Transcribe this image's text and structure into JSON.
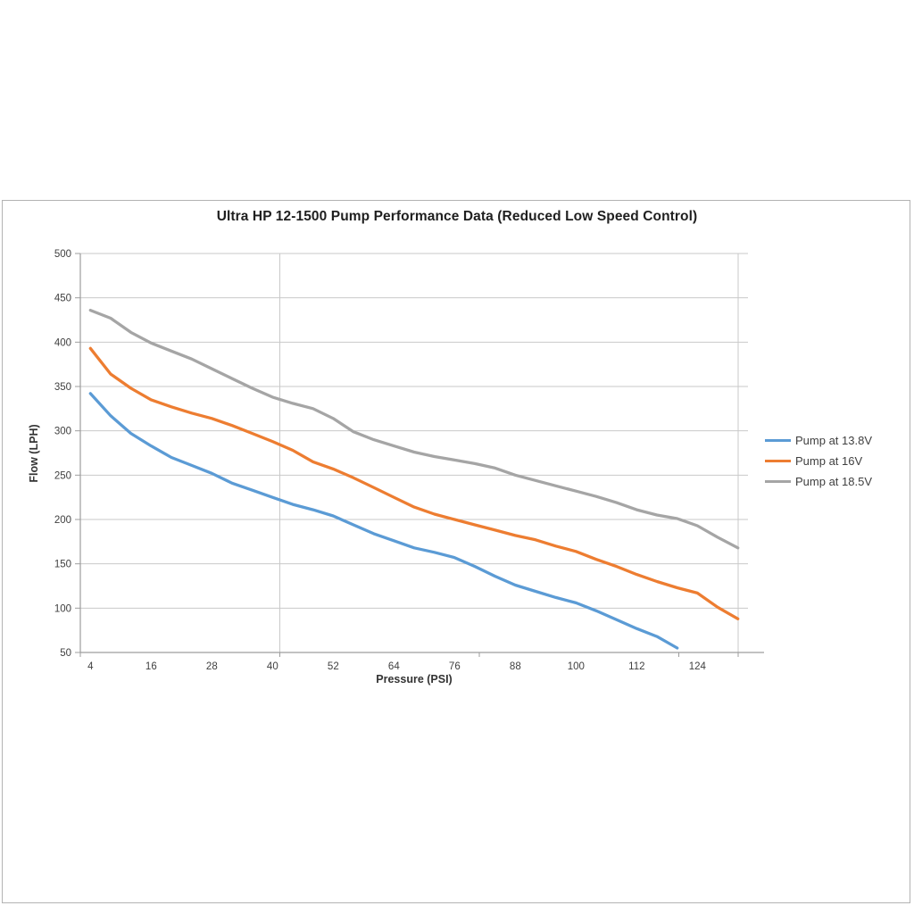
{
  "chart_data": {
    "type": "line",
    "title": "Ultra HP 12-1500 Pump Performance Data (Reduced Low Speed  Control)",
    "xlabel": "Pressure (PSI)",
    "ylabel": "Flow (LPH)",
    "x": [
      4,
      8,
      12,
      16,
      20,
      24,
      28,
      32,
      36,
      40,
      44,
      48,
      52,
      56,
      60,
      64,
      68,
      72,
      76,
      80,
      84,
      88,
      92,
      96,
      100,
      104,
      108,
      112,
      116,
      120,
      124,
      128,
      132
    ],
    "x_tick_labels": [
      "4",
      "16",
      "28",
      "40",
      "52",
      "64",
      "76",
      "88",
      "100",
      "112",
      "124"
    ],
    "y_ticks": [
      50,
      100,
      150,
      200,
      250,
      300,
      350,
      400,
      450,
      500
    ],
    "ylim": [
      50,
      500
    ],
    "grid": "horizontal",
    "legend_position": "right",
    "series": [
      {
        "name": "Pump at 13.8V",
        "color": "#5B9BD5",
        "values": [
          342,
          317,
          297,
          283,
          270,
          261,
          252,
          241,
          233,
          225,
          217,
          211,
          204,
          194,
          184,
          176,
          168,
          163,
          157,
          147,
          136,
          126,
          119,
          112,
          106,
          97,
          87,
          77,
          68,
          55
        ]
      },
      {
        "name": "Pump at 16V",
        "color": "#ED7D31",
        "values": [
          393,
          364,
          348,
          335,
          327,
          320,
          314,
          306,
          297,
          288,
          278,
          265,
          257,
          247,
          236,
          225,
          214,
          206,
          200,
          194,
          188,
          182,
          177,
          170,
          164,
          155,
          147,
          138,
          130,
          123,
          117,
          101,
          88
        ]
      },
      {
        "name": "Pump at 18.5V",
        "color": "#A5A5A5",
        "values": [
          436,
          427,
          411,
          399,
          390,
          381,
          370,
          359,
          348,
          338,
          331,
          325,
          314,
          299,
          290,
          283,
          276,
          271,
          267,
          263,
          258,
          250,
          244,
          238,
          232,
          226,
          219,
          211,
          205,
          201,
          193,
          180,
          168
        ]
      }
    ],
    "colors": {
      "gridline": "#c9c9c9",
      "axis": "#9d9d9d",
      "text": "#404040",
      "title": "#1f1f1f"
    }
  }
}
